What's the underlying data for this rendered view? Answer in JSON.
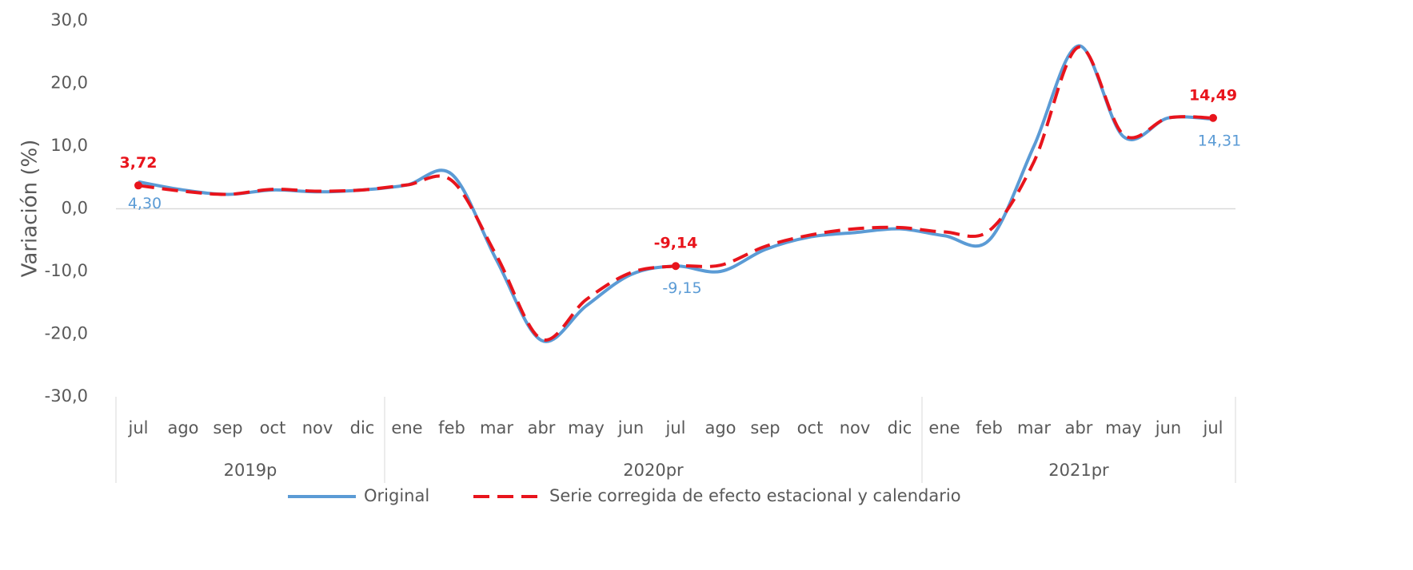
{
  "chart_data": {
    "type": "line",
    "y_axis_label": "Variación (%)",
    "categories": [
      "jul",
      "ago",
      "sep",
      "oct",
      "nov",
      "dic",
      "ene",
      "feb",
      "mar",
      "abr",
      "may",
      "jun",
      "jul",
      "ago",
      "sep",
      "oct",
      "nov",
      "dic",
      "ene",
      "feb",
      "mar",
      "abr",
      "may",
      "jun",
      "jul"
    ],
    "groups": [
      {
        "label": "2019p",
        "size": 6
      },
      {
        "label": "2020pr",
        "size": 12
      },
      {
        "label": "2021pr",
        "size": 7
      }
    ],
    "series": [
      {
        "name": "Original",
        "color": "#5b9bd5",
        "dashed": false,
        "values": [
          4.3,
          3.0,
          2.3,
          3.0,
          2.7,
          3.0,
          3.8,
          5.5,
          -8.2,
          -21,
          -15.5,
          -10.5,
          -9.15,
          -10,
          -6.5,
          -4.5,
          -3.8,
          -3.2,
          -4.3,
          -5,
          10,
          26,
          11.5,
          14.5,
          14.31
        ],
        "value_labels": [
          "4,30",
          null,
          null,
          null,
          null,
          null,
          null,
          null,
          null,
          null,
          null,
          null,
          "-9,15",
          null,
          null,
          null,
          null,
          null,
          null,
          null,
          null,
          null,
          null,
          null,
          "14,31"
        ]
      },
      {
        "name": "Serie corregida de efecto estacional y calendario",
        "color": "#e8141c",
        "dashed": true,
        "values": [
          3.72,
          2.8,
          2.3,
          3.1,
          2.8,
          3.0,
          3.8,
          4.5,
          -7.5,
          -20.8,
          -14.5,
          -10.2,
          -9.14,
          -9.0,
          -6,
          -4.2,
          -3.2,
          -3.0,
          -3.7,
          -3.5,
          7.5,
          25.8,
          11.8,
          14.5,
          14.49
        ],
        "value_labels": [
          "3,72",
          null,
          null,
          null,
          null,
          null,
          null,
          null,
          null,
          null,
          null,
          null,
          "-9,14",
          null,
          null,
          null,
          null,
          null,
          null,
          null,
          null,
          null,
          null,
          null,
          "14,49"
        ]
      }
    ],
    "ylim": [
      -30,
      30
    ],
    "yticks": [
      {
        "value": -30,
        "label": "-30,0"
      },
      {
        "value": -20,
        "label": "-20,0"
      },
      {
        "value": -10,
        "label": "-10,0"
      },
      {
        "value": 0,
        "label": "0,0"
      },
      {
        "value": 10,
        "label": "10,0"
      },
      {
        "value": 20,
        "label": "20,0"
      },
      {
        "value": 30,
        "label": "30,0"
      }
    ],
    "legend": "bottom"
  }
}
